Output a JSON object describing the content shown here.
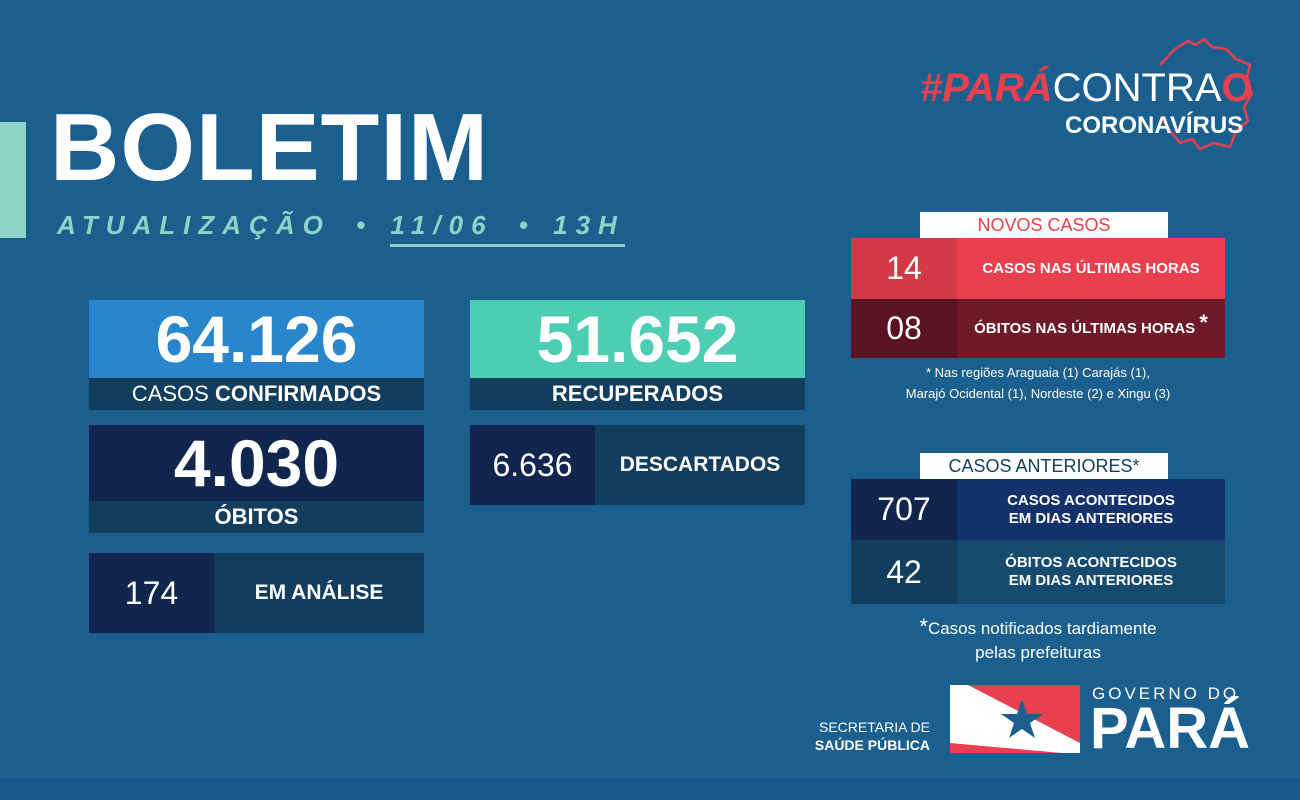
{
  "header": {
    "title": "BOLETIM",
    "update_label": "ATUALIZAÇÃO",
    "date": "11/06",
    "time": "13H",
    "separator": "•"
  },
  "campaign": {
    "hashtag_part1": "#PARÁ",
    "hashtag_part2": "CONTRA",
    "hashtag_part3": "O",
    "subtitle": "CORONAVÍRUS",
    "map_icon": "para-map-outline-icon"
  },
  "stats": {
    "confirmed": {
      "value": "64.126",
      "label_prefix": "CASOS",
      "label_bold": "CONFIRMADOS"
    },
    "recovered": {
      "value": "51.652",
      "label": "RECUPERADOS"
    },
    "deaths": {
      "value": "4.030",
      "label": "ÓBITOS"
    },
    "discarded": {
      "value": "6.636",
      "label": "DESCARTADOS"
    },
    "analysis": {
      "value": "174",
      "label": "EM ANÁLISE"
    }
  },
  "new_cases": {
    "heading": "NOVOS CASOS",
    "cases": {
      "value": "14",
      "label": "CASOS NAS ÚLTIMAS HORAS"
    },
    "deaths": {
      "value": "08",
      "label": "ÓBITOS NAS ÚLTIMAS HORAS",
      "mark": "*"
    },
    "note_line1": "* Nas regiões Araguaia (1) Carajás (1),",
    "note_line2": "Marajó Ocidental (1), Nordeste (2) e Xingu (3)"
  },
  "previous_cases": {
    "heading": "CASOS ANTERIORES",
    "mark": "*",
    "cases": {
      "value": "707",
      "label_line1": "CASOS ACONTECIDOS",
      "label_line2": "EM DIAS ANTERIORES"
    },
    "deaths": {
      "value": "42",
      "label_line1": "ÓBITOS ACONTECIDOS",
      "label_line2": "EM DIAS ANTERIORES"
    },
    "note_mark": "*",
    "note_line1": "Casos notificados tardiamente",
    "note_line2": "pelas prefeituras"
  },
  "footer": {
    "secretaria_line1": "SECRETARIA DE",
    "secretaria_line2": "SAÚDE PÚBLICA",
    "gov_label": "GOVERNO DO",
    "state": "PARÁ",
    "flag_icon": "para-flag-icon"
  },
  "colors": {
    "background": "#1a5f8e",
    "accent_teal": "#8fd3c7",
    "confirmed_blue": "#2a86cc",
    "recovered_teal": "#4ecdb5",
    "navy": "#10264e",
    "dark_teal": "#123d5c",
    "red": "#e8404f",
    "dark_red": "#6e1a28",
    "red_cell": "#d23a48",
    "deep_red": "#5a1320"
  }
}
